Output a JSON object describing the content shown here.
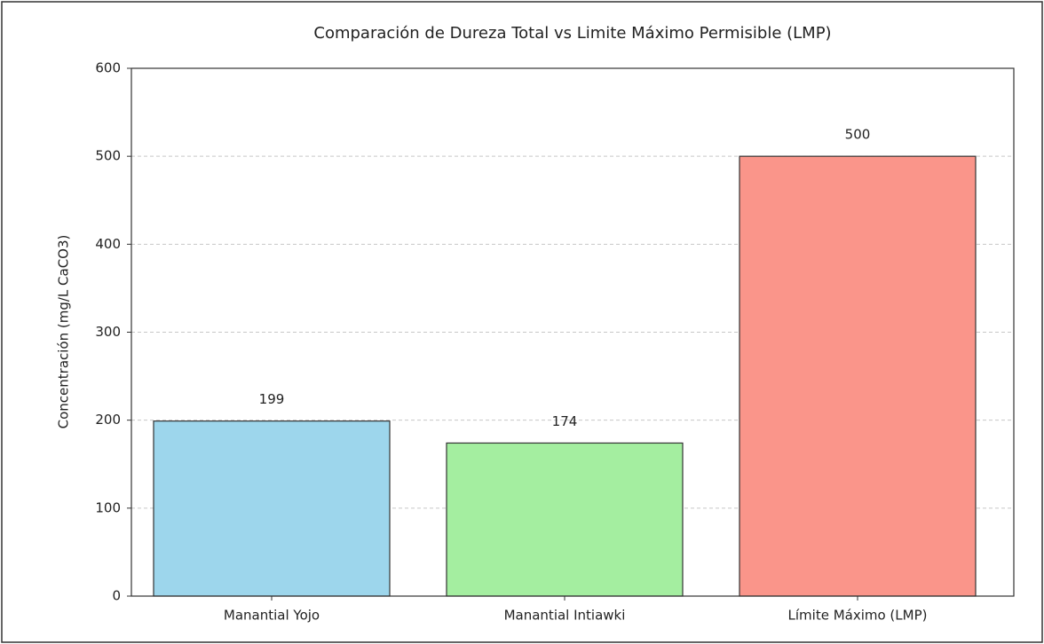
{
  "chart_data": {
    "type": "bar",
    "title": "Comparación de Dureza Total vs Limite Máximo Permisible (LMP)",
    "y_label": "Concentración (mg/L CaCO3)",
    "categories": [
      "Manantial Yojo",
      "Manantial Intiawki",
      "Límite Máximo (LMP)"
    ],
    "values": [
      199,
      174,
      500
    ],
    "colors": [
      "#9dd6ec",
      "#a4eea0",
      "#fa958a"
    ],
    "ylim": [
      0,
      600
    ],
    "yticks": [
      0,
      100,
      200,
      300,
      400,
      500,
      600
    ],
    "grid": true
  }
}
